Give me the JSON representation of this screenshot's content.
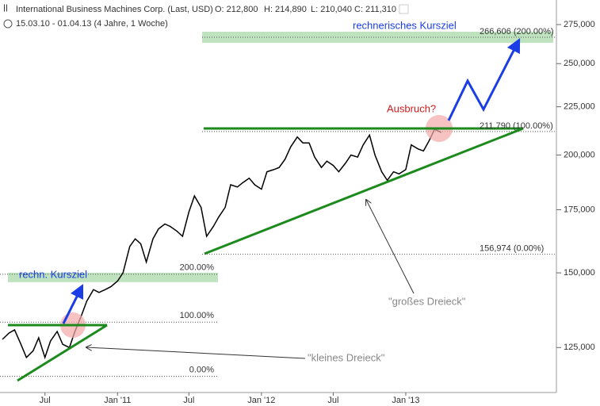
{
  "chart_data": {
    "type": "line",
    "title": "International Business Machines Corp. (Last, USD)",
    "quote": [
      "O: 212,800",
      "H: 214,890",
      "L: 210,040",
      "C: 211,310"
    ],
    "subtitle": "15.03.10 - 01.04.13 (4 Jahre, 1 Woche)",
    "log_scale": true,
    "color": "#000000",
    "x": [
      "2010-03-15",
      "2010-04-01",
      "2010-04-15",
      "2010-05-01",
      "2010-05-15",
      "2010-06-01",
      "2010-06-15",
      "2010-07-01",
      "2010-07-15",
      "2010-08-01",
      "2010-08-15",
      "2010-09-01",
      "2010-09-15",
      "2010-10-01",
      "2010-10-15",
      "2010-11-01",
      "2010-11-15",
      "2010-12-01",
      "2010-12-15",
      "2011-01-01",
      "2011-01-15",
      "2011-02-01",
      "2011-02-15",
      "2011-03-01",
      "2011-03-15",
      "2011-04-01",
      "2011-04-15",
      "2011-05-01",
      "2011-05-15",
      "2011-06-01",
      "2011-06-15",
      "2011-07-01",
      "2011-07-15",
      "2011-08-01",
      "2011-08-15",
      "2011-09-01",
      "2011-09-15",
      "2011-10-01",
      "2011-10-15",
      "2011-11-01",
      "2011-11-15",
      "2011-12-01",
      "2011-12-15",
      "2012-01-01",
      "2012-01-15",
      "2012-02-01",
      "2012-02-15",
      "2012-03-01",
      "2012-03-15",
      "2012-04-01",
      "2012-04-15",
      "2012-05-01",
      "2012-05-15",
      "2012-06-01",
      "2012-06-15",
      "2012-07-01",
      "2012-07-15",
      "2012-08-01",
      "2012-08-15",
      "2012-09-01",
      "2012-09-15",
      "2012-10-01",
      "2012-10-15",
      "2012-11-01",
      "2012-11-15",
      "2012-12-01",
      "2012-12-15",
      "2013-01-01",
      "2013-01-15",
      "2013-02-01",
      "2013-02-15",
      "2013-03-01",
      "2013-03-15",
      "2013-04-01"
    ],
    "values": [
      127500,
      129500,
      130500,
      126000,
      122000,
      124000,
      128000,
      122000,
      127000,
      130000,
      126000,
      125000,
      130000,
      135000,
      140000,
      144000,
      143000,
      144000,
      145000,
      147000,
      150000,
      160000,
      163000,
      161000,
      154000,
      163000,
      167000,
      169000,
      168000,
      166000,
      164000,
      174000,
      181000,
      176000,
      164000,
      168000,
      172000,
      176000,
      186000,
      185000,
      187000,
      189000,
      186000,
      184000,
      192000,
      193000,
      194000,
      198000,
      204000,
      209000,
      206000,
      206000,
      199000,
      194000,
      197000,
      195000,
      192000,
      196000,
      200000,
      199000,
      205000,
      210000,
      200000,
      192000,
      188000,
      192000,
      191000,
      193000,
      205000,
      203000,
      202000,
      207000,
      213000,
      211310
    ],
    "xlim": [
      "2010-03-09",
      "2014-01-14"
    ],
    "xticks": [
      {
        "value": "2010-07-01",
        "label": "Jul"
      },
      {
        "value": "2011-01-01",
        "label": "Jan '11"
      },
      {
        "value": "2011-07-01",
        "label": "Jul"
      },
      {
        "value": "2012-01-01",
        "label": "Jan '12"
      },
      {
        "value": "2012-07-01",
        "label": "Jul"
      },
      {
        "value": "2013-01-01",
        "label": "Jan '13"
      }
    ],
    "ylim": [
      112000,
      292000
    ],
    "yticks": [
      {
        "value": 125000,
        "label": "125,000"
      },
      {
        "value": 150000,
        "label": "150,000"
      },
      {
        "value": 175000,
        "label": "175,000"
      },
      {
        "value": 200000,
        "label": "200,000"
      },
      {
        "value": 225000,
        "label": "225,000"
      },
      {
        "value": 250000,
        "label": "250,000"
      },
      {
        "value": 275000,
        "label": "275,000"
      }
    ],
    "levels": [
      {
        "value": 266606,
        "label": "266,606 (200.00%)"
      },
      {
        "value": 211790,
        "label": "211,790 (100.00%)"
      },
      {
        "value": 156974,
        "label": "156,974 (0.00%)"
      }
    ],
    "small_levels": [
      {
        "value": 149500,
        "label": "200.00%"
      },
      {
        "value": 133000,
        "label": "100.00%"
      },
      {
        "value": 116500,
        "label": "0.00%"
      }
    ],
    "annotations": [
      "rechnerisches Kursziel",
      "Ausbruch?",
      "rechn. Kursziel",
      "\"großes Dreieck\"",
      "\"kleines Dreieck\""
    ]
  }
}
